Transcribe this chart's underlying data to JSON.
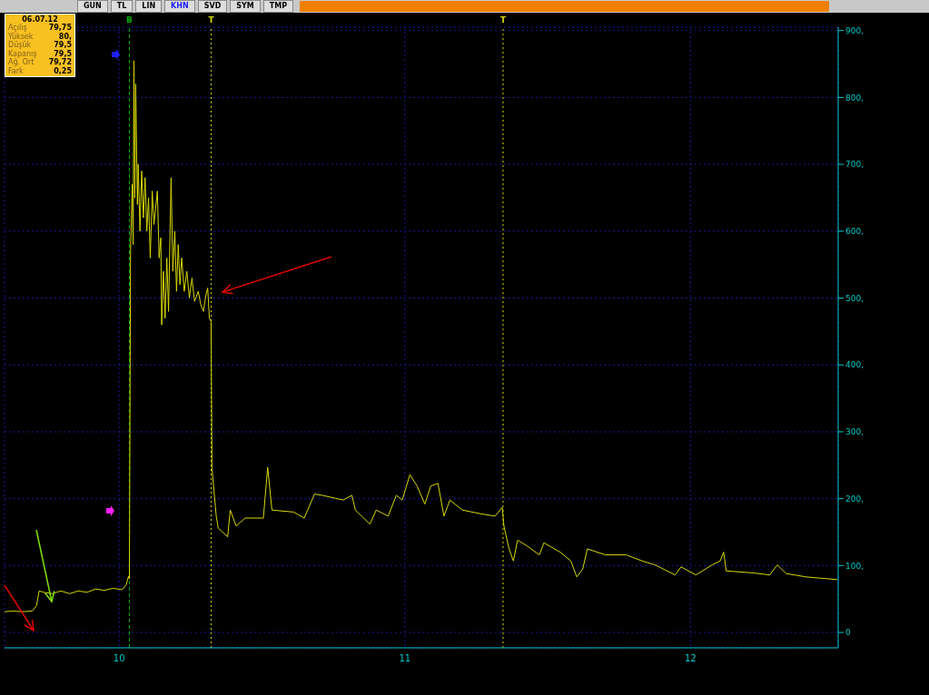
{
  "chart_data": {
    "type": "line",
    "xlim": [
      9.599,
      12.517
    ],
    "xticks": [
      10,
      11,
      12
    ],
    "ylim": [
      -23,
      905
    ],
    "yticks": [
      0,
      {
        "value": 100,
        "label": "100,"
      },
      {
        "value": 200,
        "label": "200,"
      },
      {
        "value": 300,
        "label": "300,"
      },
      {
        "value": 400,
        "label": "400,"
      },
      {
        "value": 500,
        "label": "500,"
      },
      {
        "value": 600,
        "label": "600,"
      },
      {
        "value": 700,
        "label": "700,"
      },
      {
        "value": 800,
        "label": "800,"
      },
      {
        "value": 900,
        "label": "900,"
      }
    ],
    "grid": true,
    "marker": "none",
    "line_style": "solid",
    "series": [
      {
        "color": "#d8d800",
        "x": [
          9.599,
          9.629,
          9.66,
          9.696,
          9.711,
          9.72,
          9.736,
          9.766,
          9.796,
          9.827,
          9.857,
          9.888,
          9.918,
          9.948,
          9.979,
          10.009,
          10.024,
          10.033,
          10.036,
          10.04,
          10.046,
          10.049,
          10.052,
          10.055,
          10.058,
          10.064,
          10.067,
          10.073,
          10.079,
          10.085,
          10.091,
          10.097,
          10.103,
          10.109,
          10.116,
          10.122,
          10.134,
          10.14,
          10.146,
          10.149,
          10.155,
          10.161,
          10.167,
          10.173,
          10.182,
          10.188,
          10.195,
          10.201,
          10.207,
          10.213,
          10.219,
          10.228,
          10.237,
          10.246,
          10.255,
          10.264,
          10.277,
          10.286,
          10.295,
          10.304,
          10.31,
          10.316,
          10.322,
          10.325,
          10.34,
          10.347,
          10.38,
          10.389,
          10.41,
          10.441,
          10.505,
          10.52,
          10.535,
          10.611,
          10.648,
          10.684,
          10.711,
          10.784,
          10.815,
          10.827,
          10.878,
          10.9,
          10.942,
          10.97,
          10.991,
          11.018,
          11.043,
          11.07,
          11.091,
          11.116,
          11.137,
          11.158,
          11.201,
          11.271,
          11.316,
          11.341,
          11.347,
          11.365,
          11.38,
          11.395,
          11.429,
          11.471,
          11.487,
          11.544,
          11.581,
          11.602,
          11.623,
          11.639,
          11.702,
          11.775,
          11.83,
          11.876,
          11.946,
          11.967,
          12.019,
          12.076,
          12.104,
          12.116,
          12.125,
          12.219,
          12.277,
          12.304,
          12.335,
          12.405,
          12.514
        ],
        "values": [
          31,
          32,
          31,
          32,
          40,
          62,
          60,
          58,
          62,
          58,
          62,
          60,
          65,
          63,
          66,
          64,
          70,
          84,
          80,
          570,
          670,
          580,
          855,
          650,
          820,
          640,
          700,
          600,
          690,
          620,
          680,
          600,
          650,
          560,
          660,
          610,
          660,
          560,
          590,
          460,
          540,
          470,
          560,
          480,
          680,
          540,
          600,
          510,
          580,
          520,
          560,
          510,
          540,
          500,
          530,
          495,
          510,
          490,
          480,
          505,
          515,
          470,
          465,
          246,
          174,
          156,
          143,
          183,
          159,
          171,
          171,
          247,
          183,
          180,
          171,
          207,
          205,
          198,
          205,
          183,
          162,
          183,
          174,
          205,
          198,
          236,
          219,
          192,
          219,
          223,
          174,
          198,
          183,
          177,
          174,
          187,
          159,
          125,
          107,
          138,
          129,
          116,
          134,
          120,
          107,
          83,
          95,
          125,
          116,
          116,
          107,
          101,
          86,
          98,
          86,
          101,
          107,
          120,
          92,
          89,
          86,
          101,
          88,
          83,
          79
        ]
      }
    ],
    "ref_lines": [
      {
        "axis": "x",
        "value": 10.036,
        "label": "B",
        "color": "#00b000",
        "line_style": "dashed"
      },
      {
        "axis": "x",
        "value": 10.322,
        "label": "T",
        "color": "#d8d800",
        "line_style": "dotted"
      },
      {
        "axis": "x",
        "value": 11.344,
        "label": "T",
        "color": "#d8d800",
        "line_style": "dotted"
      }
    ],
    "annotations": [
      "GUN",
      "TL",
      "LIN",
      "KHN",
      "SVD",
      "SYM",
      "TMP",
      "06.07.12",
      "Açılış",
      "79,75",
      "Yüksek",
      "80,",
      "Düşük",
      "79,5",
      "Kapanış",
      "79,5",
      "Ağ. Ort",
      "79,72",
      "Fark",
      "0,25"
    ]
  }
}
